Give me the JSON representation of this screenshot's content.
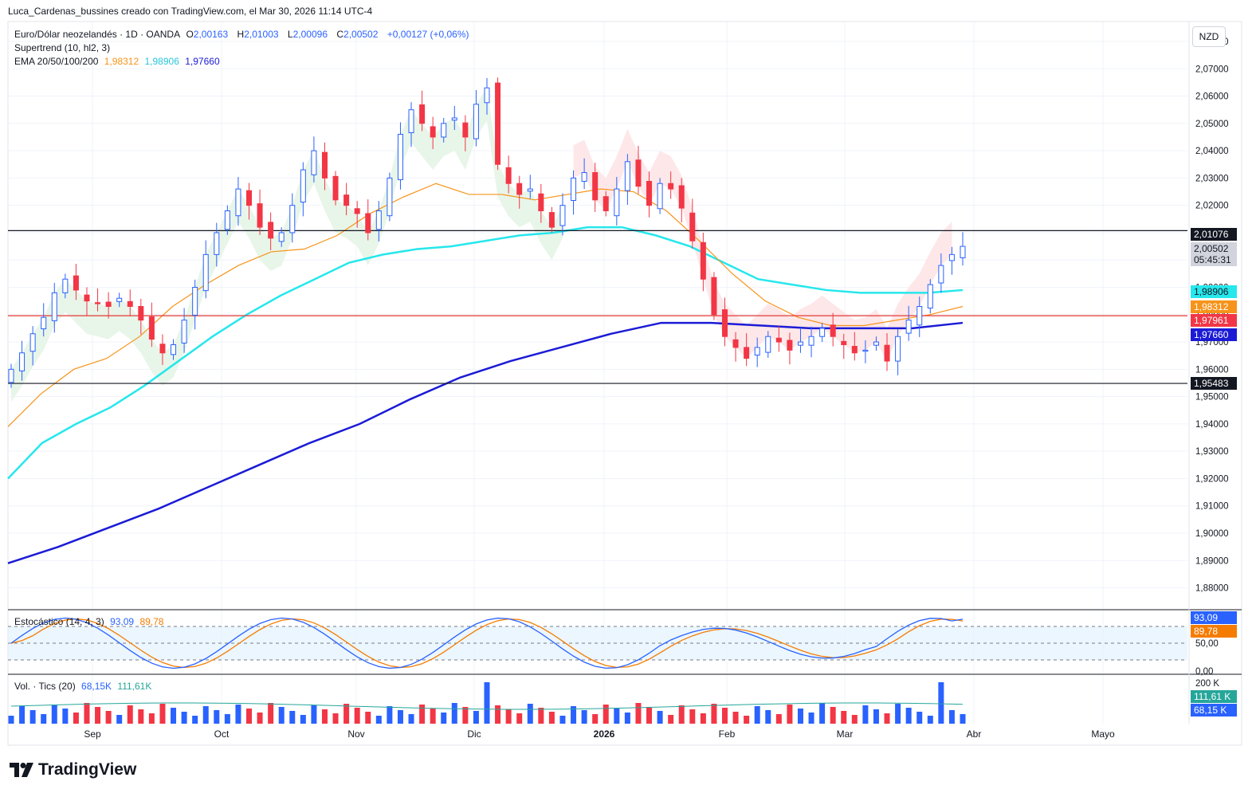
{
  "caption": "Luca_Cardenas_bussines creado con TradingView.com, el Mar 30, 2026 11:14 UTC-4",
  "currency_button": "NZD",
  "legend": {
    "symbol": "Euro/Dólar neozelandés · 1D · OANDA",
    "o_label": "O",
    "o_value": "2,00163",
    "h_label": "H",
    "h_value": "2,01003",
    "l_label": "L",
    "l_value": "2,00096",
    "c_label": "C",
    "c_value": "2,00502",
    "change": "+0,00127 (+0,06%)",
    "supertrend": "Supertrend (10, hl2, 3)",
    "ema_label": "EMA 20/50/100/200",
    "ema20": "1,98312",
    "ema50": "1,98906",
    "ema100": "1,97660"
  },
  "stoch_legend": {
    "label": "Estocástico (14, 4, 3)",
    "k": "93,09",
    "d": "89,78"
  },
  "vol_legend": {
    "label": "Vol. · Tics (20)",
    "v1": "68,15K",
    "v2": "111,61K"
  },
  "price_tags": {
    "upper_line": "2,01076",
    "last_price": "2,00502",
    "countdown": "05:45:31",
    "ema50": "1,98906",
    "ema20": "1,98312",
    "red_line": "1,97961",
    "ema200": "1,97660",
    "lower_line": "1,95483"
  },
  "stoch_tags": {
    "k": "93,09",
    "d": "89,78"
  },
  "vol_tags": {
    "v1": "111,61 K",
    "v2": "68,15 K",
    "axis_top": "200 K"
  },
  "colors": {
    "up": "#2962ff",
    "down": "#f23645",
    "ema20": "#f7931a",
    "ema50": "#26e7ec",
    "ema200": "#1b1bd6",
    "supertrend_up": "#e8f5e9",
    "supertrend_down": "#fde7e9",
    "red_line": "#e53935",
    "stoch_k": "#2962ff",
    "stoch_d": "#f57c00"
  },
  "logo_text": "TradingView",
  "chart_data": {
    "type": "candlestick",
    "title": "Euro/Dólar neozelandés · 1D · OANDA",
    "y_axis_ticks": [
      "2,08000",
      "2,07000",
      "2,06000",
      "2,05000",
      "2,04000",
      "2,03000",
      "2,02000",
      "2,01000",
      "2,00000",
      "1,99000",
      "1,98000",
      "1,97000",
      "1,96000",
      "1,95000",
      "1,94000",
      "1,93000",
      "1,92000",
      "1,91000",
      "1,90000",
      "1,89000",
      "1,88000"
    ],
    "ylim": [
      1.872,
      2.087
    ],
    "x_axis_labels": [
      "Sep",
      "Oct",
      "Nov",
      "Dic",
      "2026",
      "Feb",
      "Mar",
      "Abr",
      "Mayo"
    ],
    "horizontal_lines": [
      2.01076,
      1.97961,
      1.95483
    ],
    "last_ohlc": {
      "open": 2.00163,
      "high": 2.01003,
      "low": 2.00096,
      "close": 2.00502
    },
    "close_path": [
      1.96,
      1.966,
      1.973,
      1.979,
      1.988,
      1.993,
      1.989,
      1.985,
      1.984,
      1.983,
      1.986,
      1.983,
      1.978,
      1.971,
      1.966,
      1.969,
      1.978,
      1.99,
      2.002,
      2.01,
      2.018,
      2.026,
      2.02,
      2.012,
      2.008,
      2.01,
      2.02,
      2.033,
      2.04,
      2.03,
      2.022,
      2.02,
      2.017,
      2.01,
      2.018,
      2.03,
      2.046,
      2.055,
      2.05,
      2.045,
      2.05,
      2.052,
      2.045,
      2.057,
      2.063,
      2.035,
      2.028,
      2.024,
      2.026,
      2.018,
      2.012,
      2.02,
      2.03,
      2.032,
      2.022,
      2.018,
      2.026,
      2.036,
      2.027,
      2.02,
      2.028,
      2.026,
      2.019,
      2.007,
      1.993,
      1.98,
      1.972,
      1.968,
      1.964,
      1.968,
      1.972,
      1.97,
      1.967,
      1.97,
      1.972,
      1.975,
      1.972,
      1.969,
      1.966,
      1.967,
      1.97,
      1.963,
      1.972,
      1.978,
      1.983,
      1.991,
      1.998,
      2.002,
      2.005
    ],
    "ema20_path": [
      1.939,
      1.951,
      1.96,
      1.964,
      1.972,
      1.983,
      1.991,
      1.998,
      2.003,
      2.004,
      2.009,
      2.017,
      2.023,
      2.028,
      2.024,
      2.024,
      2.022,
      2.024,
      2.026,
      2.025,
      2.018,
      2.007,
      1.995,
      1.985,
      1.979,
      1.976,
      1.976,
      1.978,
      1.98,
      1.983
    ],
    "ema50_path": [
      1.92,
      1.933,
      1.94,
      1.946,
      1.954,
      1.963,
      1.972,
      1.98,
      1.987,
      1.993,
      1.999,
      2.002,
      2.004,
      2.005,
      2.007,
      2.009,
      2.01,
      2.012,
      2.012,
      2.009,
      2.005,
      1.999,
      1.993,
      1.991,
      1.989,
      1.988,
      1.988,
      1.988,
      1.989
    ],
    "ema200_path": [
      1.889,
      1.895,
      1.902,
      1.909,
      1.917,
      1.925,
      1.933,
      1.94,
      1.949,
      1.957,
      1.963,
      1.968,
      1.973,
      1.977,
      1.977,
      1.976,
      1.975,
      1.975,
      1.975,
      1.977
    ],
    "stochastic": {
      "k_last": 93.09,
      "d_last": 89.78,
      "levels": [
        80,
        50,
        20
      ],
      "ylim": [
        0,
        100
      ]
    },
    "volume": {
      "last_ticks": 68150,
      "avg_ticks": 111610,
      "axis_top": 200000
    }
  }
}
